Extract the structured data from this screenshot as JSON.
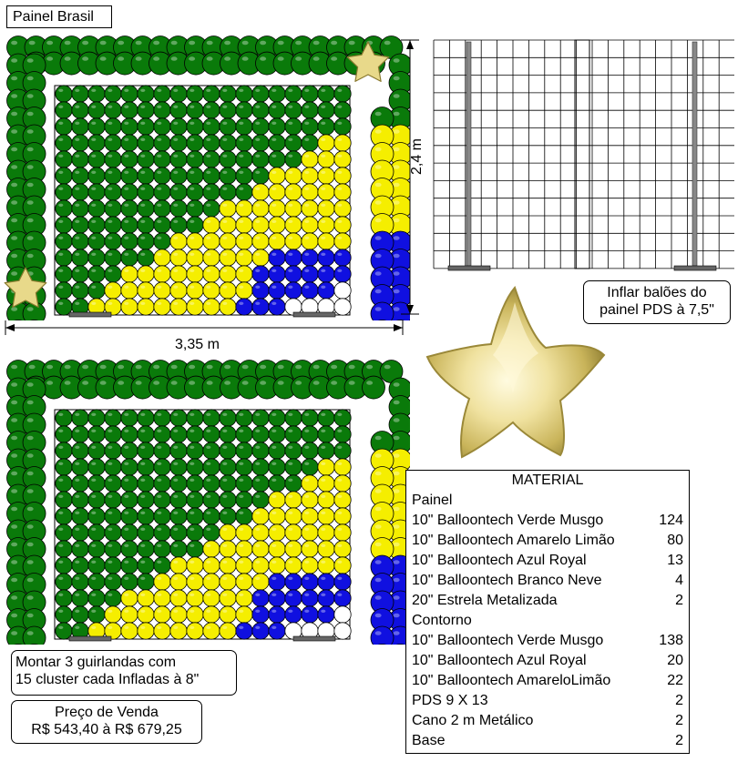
{
  "title": "Painel Brasil",
  "dimensions": {
    "height": "2,4 m",
    "width": "3,35 m"
  },
  "pds_note": [
    "Inflar balões do",
    "painel PDS à 7,5\""
  ],
  "garland_note": [
    "Montar 3 guirlandas com",
    "15 cluster cada Infladas à 8\""
  ],
  "price": {
    "label": "Preço de Venda",
    "value": "R$ 543,40 à R$ 679,25"
  },
  "material": {
    "title": "MATERIAL",
    "sections": [
      {
        "name": "Painel",
        "items": [
          {
            "label": "10\" Balloontech Verde Musgo",
            "qty": "124"
          },
          {
            "label": "10\" Balloontech Amarelo Limão",
            "qty": "80"
          },
          {
            "label": "10\" Balloontech Azul Royal",
            "qty": "13"
          },
          {
            "label": "10\" Balloontech Branco Neve",
            "qty": "4"
          },
          {
            "label": "20\" Estrela Metalizada",
            "qty": "2"
          }
        ]
      },
      {
        "name": "Contorno",
        "items": [
          {
            "label": "10\" Balloontech Verde Musgo",
            "qty": "138"
          },
          {
            "label": "10\" Balloontech Azul Royal",
            "qty": "20"
          },
          {
            "label": "10\" Balloontech AmareloLimão",
            "qty": "22"
          },
          {
            "label": "PDS 9 X 13",
            "qty": "2"
          },
          {
            "label": "Cano 2 m Metálico",
            "qty": "2"
          },
          {
            "label": "Base",
            "qty": "2"
          }
        ]
      }
    ]
  },
  "colors": {
    "green": "#0a7a0a",
    "yellow": "#f5ee00",
    "blue": "#1010e0",
    "white": "#ffffff",
    "gold": "#e8d98a"
  },
  "icons": [
    "star-balloon-icon"
  ]
}
